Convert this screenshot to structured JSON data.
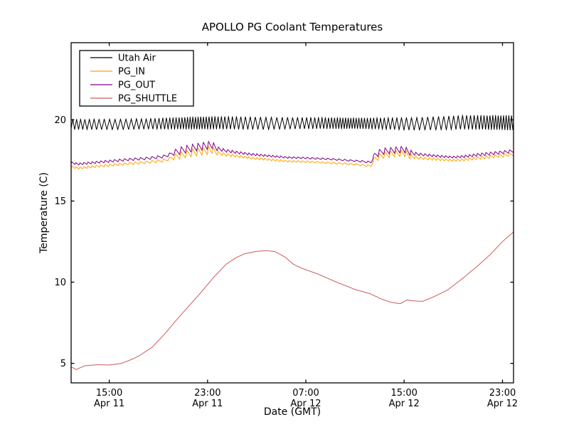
{
  "chart_data": {
    "type": "line",
    "title": "APOLLO PG Coolant Temperatures",
    "xlabel": "Date (GMT)",
    "ylabel": "Temperature (C)",
    "x_unit": "hours since Apr 11 00:00 GMT",
    "xlim": [
      11.9,
      47.9
    ],
    "ylim": [
      3.8,
      24.75
    ],
    "grid": false,
    "legend_position": "upper left",
    "background_color": "#ffffff",
    "axis_color": "#000000",
    "yticks": [
      5,
      10,
      15,
      20
    ],
    "xticks": [
      {
        "hour": 15,
        "time": "15:00",
        "date": "Apr 11"
      },
      {
        "hour": 23,
        "time": "23:00",
        "date": "Apr 11"
      },
      {
        "hour": 31,
        "time": "07:00",
        "date": "Apr 12"
      },
      {
        "hour": 39,
        "time": "15:00",
        "date": "Apr 12"
      },
      {
        "hour": 47,
        "time": "23:00",
        "date": "Apr 12"
      }
    ],
    "series": [
      {
        "name": "Utah Air",
        "color": "#000000",
        "points": [
          [
            11.9,
            19.72
          ],
          [
            16,
            19.72
          ],
          [
            20,
            19.78
          ],
          [
            24,
            19.82
          ],
          [
            28,
            19.78
          ],
          [
            32,
            19.8
          ],
          [
            36,
            19.78
          ],
          [
            40,
            19.75
          ],
          [
            44,
            19.85
          ],
          [
            47.9,
            19.82
          ]
        ],
        "ripple": {
          "period_hours": 0.33,
          "attack": 0.5,
          "period_wobble": 0.35,
          "wobble_freq": 0.5,
          "amplitude_points": [
            [
              11.9,
              0.32
            ],
            [
              18,
              0.33
            ],
            [
              22,
              0.4
            ],
            [
              26,
              0.4
            ],
            [
              30,
              0.36
            ],
            [
              36,
              0.35
            ],
            [
              42,
              0.42
            ],
            [
              47.9,
              0.48
            ]
          ]
        }
      },
      {
        "name": "PG_IN",
        "color": "#ffa500",
        "points": [
          [
            11.9,
            17.1
          ],
          [
            12.5,
            17.02
          ],
          [
            13.5,
            17.1
          ],
          [
            15,
            17.2
          ],
          [
            16.5,
            17.3
          ],
          [
            18,
            17.38
          ],
          [
            19.5,
            17.5
          ],
          [
            20.3,
            17.7
          ],
          [
            21,
            17.85
          ],
          [
            22,
            18.0
          ],
          [
            23,
            18.1
          ],
          [
            23.4,
            18.15
          ],
          [
            23.8,
            17.95
          ],
          [
            24.5,
            17.85
          ],
          [
            25.5,
            17.75
          ],
          [
            26.5,
            17.65
          ],
          [
            28,
            17.55
          ],
          [
            29.5,
            17.45
          ],
          [
            31,
            17.42
          ],
          [
            33,
            17.35
          ],
          [
            34.5,
            17.28
          ],
          [
            35.5,
            17.22
          ],
          [
            36.3,
            17.15
          ],
          [
            36.6,
            17.6
          ],
          [
            37.2,
            17.8
          ],
          [
            38,
            17.9
          ],
          [
            39,
            17.95
          ],
          [
            39.5,
            17.75
          ],
          [
            40.2,
            17.65
          ],
          [
            41,
            17.6
          ],
          [
            42,
            17.55
          ],
          [
            43,
            17.5
          ],
          [
            44,
            17.55
          ],
          [
            45,
            17.65
          ],
          [
            46,
            17.72
          ],
          [
            47,
            17.8
          ],
          [
            47.9,
            17.88
          ]
        ],
        "ripple": {
          "period_hours": 0.4,
          "attack": 0.25,
          "period_wobble": 0.2,
          "wobble_freq": 0.4,
          "amplitude_points": [
            [
              11.9,
              0.06
            ],
            [
              14,
              0.07
            ],
            [
              18,
              0.08
            ],
            [
              20,
              0.1
            ],
            [
              20.5,
              0.22
            ],
            [
              23.2,
              0.25
            ],
            [
              24,
              0.1
            ],
            [
              26,
              0.07
            ],
            [
              30,
              0.05
            ],
            [
              35,
              0.05
            ],
            [
              36.4,
              0.06
            ],
            [
              36.7,
              0.2
            ],
            [
              39.3,
              0.2
            ],
            [
              40,
              0.08
            ],
            [
              43,
              0.06
            ],
            [
              45,
              0.09
            ],
            [
              47.9,
              0.1
            ]
          ]
        }
      },
      {
        "name": "PG_OUT",
        "color": "#800080",
        "points": [
          [
            11.9,
            17.35
          ],
          [
            12.5,
            17.28
          ],
          [
            13.5,
            17.35
          ],
          [
            15,
            17.45
          ],
          [
            16.5,
            17.55
          ],
          [
            18,
            17.62
          ],
          [
            19.5,
            17.75
          ],
          [
            20.3,
            17.98
          ],
          [
            21,
            18.15
          ],
          [
            22,
            18.3
          ],
          [
            23,
            18.42
          ],
          [
            23.4,
            18.45
          ],
          [
            23.8,
            18.22
          ],
          [
            24.5,
            18.1
          ],
          [
            25.5,
            17.98
          ],
          [
            26.5,
            17.88
          ],
          [
            28,
            17.78
          ],
          [
            29.5,
            17.68
          ],
          [
            31,
            17.65
          ],
          [
            33,
            17.58
          ],
          [
            34.5,
            17.5
          ],
          [
            35.5,
            17.45
          ],
          [
            36.3,
            17.38
          ],
          [
            36.6,
            17.85
          ],
          [
            37.2,
            18.05
          ],
          [
            38,
            18.12
          ],
          [
            39,
            18.18
          ],
          [
            39.5,
            17.98
          ],
          [
            40.2,
            17.88
          ],
          [
            41,
            17.82
          ],
          [
            42,
            17.75
          ],
          [
            43,
            17.7
          ],
          [
            44,
            17.75
          ],
          [
            45,
            17.85
          ],
          [
            46,
            17.92
          ],
          [
            47,
            18.0
          ],
          [
            47.9,
            18.08
          ]
        ],
        "ripple": {
          "period_hours": 0.4,
          "attack": 0.25,
          "period_wobble": 0.2,
          "wobble_freq": 0.4,
          "amplitude_points": [
            [
              11.9,
              0.06
            ],
            [
              14,
              0.07
            ],
            [
              18,
              0.08
            ],
            [
              20,
              0.1
            ],
            [
              20.5,
              0.22
            ],
            [
              23.2,
              0.25
            ],
            [
              24,
              0.1
            ],
            [
              26,
              0.07
            ],
            [
              30,
              0.05
            ],
            [
              35,
              0.05
            ],
            [
              36.4,
              0.06
            ],
            [
              36.7,
              0.2
            ],
            [
              39.3,
              0.2
            ],
            [
              40,
              0.08
            ],
            [
              43,
              0.06
            ],
            [
              45,
              0.09
            ],
            [
              47.9,
              0.1
            ]
          ]
        }
      },
      {
        "name": "PG_SHUTTLE",
        "color": "#cd5c5c",
        "points": [
          [
            11.9,
            4.8
          ],
          [
            12.3,
            4.62
          ],
          [
            13,
            4.85
          ],
          [
            14,
            4.92
          ],
          [
            15,
            4.9
          ],
          [
            16,
            5.0
          ],
          [
            17,
            5.3
          ],
          [
            17.5,
            5.5
          ],
          [
            18.5,
            6.0
          ],
          [
            19.5,
            6.8
          ],
          [
            20.5,
            7.7
          ],
          [
            21.5,
            8.55
          ],
          [
            22.5,
            9.4
          ],
          [
            23.5,
            10.3
          ],
          [
            24.5,
            11.1
          ],
          [
            25.3,
            11.5
          ],
          [
            26,
            11.75
          ],
          [
            27,
            11.9
          ],
          [
            27.8,
            11.95
          ],
          [
            28.5,
            11.88
          ],
          [
            29.3,
            11.55
          ],
          [
            30,
            11.1
          ],
          [
            30.7,
            10.85
          ],
          [
            32,
            10.5
          ],
          [
            33.5,
            10.0
          ],
          [
            34.2,
            9.8
          ],
          [
            35,
            9.55
          ],
          [
            36.2,
            9.3
          ],
          [
            37.2,
            8.95
          ],
          [
            38,
            8.75
          ],
          [
            38.7,
            8.68
          ],
          [
            39.2,
            8.9
          ],
          [
            39.8,
            8.85
          ],
          [
            40.5,
            8.82
          ],
          [
            41.4,
            9.1
          ],
          [
            42.5,
            9.5
          ],
          [
            43.7,
            10.2
          ],
          [
            44.9,
            10.95
          ],
          [
            46,
            11.7
          ],
          [
            47,
            12.5
          ],
          [
            47.9,
            13.1
          ]
        ]
      }
    ]
  }
}
